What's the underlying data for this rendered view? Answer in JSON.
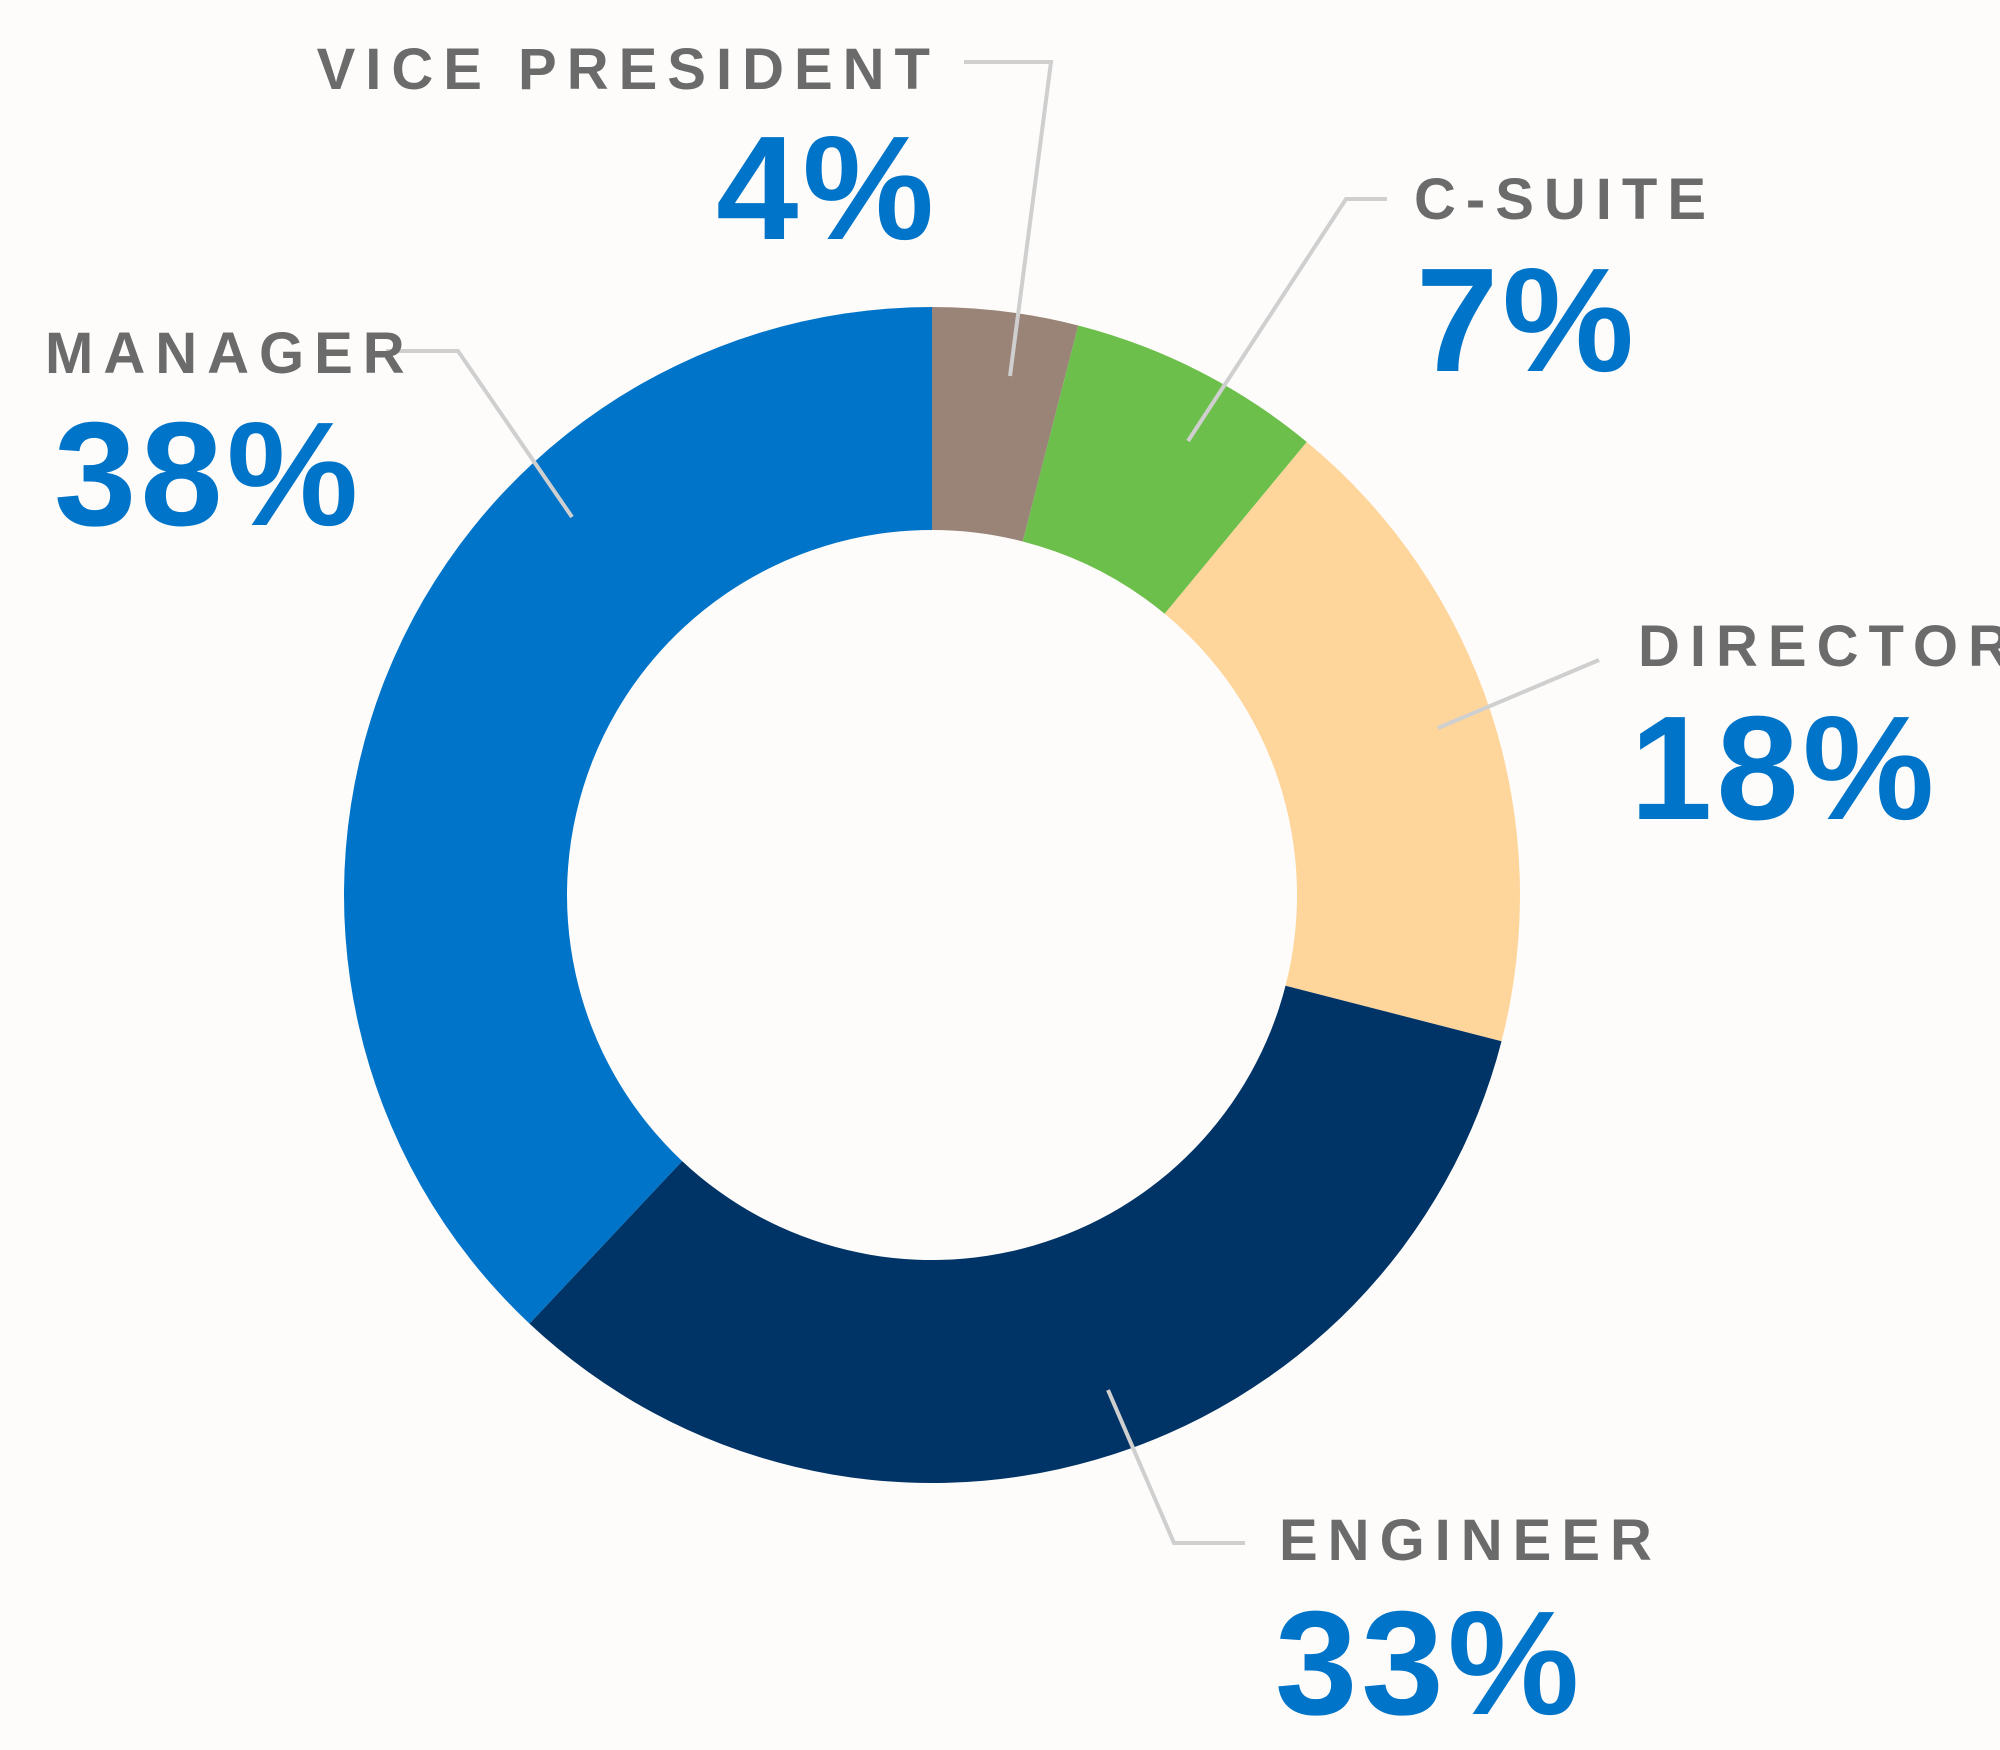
{
  "chart_data": {
    "type": "pie",
    "variant": "donut",
    "start": "top",
    "direction": "clockwise",
    "slices": [
      {
        "label": "VICE PRESIDENT",
        "value": 4,
        "display": "4%",
        "color": "#9a8478"
      },
      {
        "label": "C-SUITE",
        "value": 7,
        "display": "7%",
        "color": "#6cbf4b"
      },
      {
        "label": "DIRECTOR",
        "value": 18,
        "display": "18%",
        "color": "#fed69c"
      },
      {
        "label": "ENGINEER",
        "value": 33,
        "display": "33%",
        "color": "#003366"
      },
      {
        "label": "MANAGER",
        "value": 38,
        "display": "38%",
        "color": "#0074c8"
      }
    ],
    "label_color": "#6b6b6b",
    "percent_color": "#0074c8"
  }
}
